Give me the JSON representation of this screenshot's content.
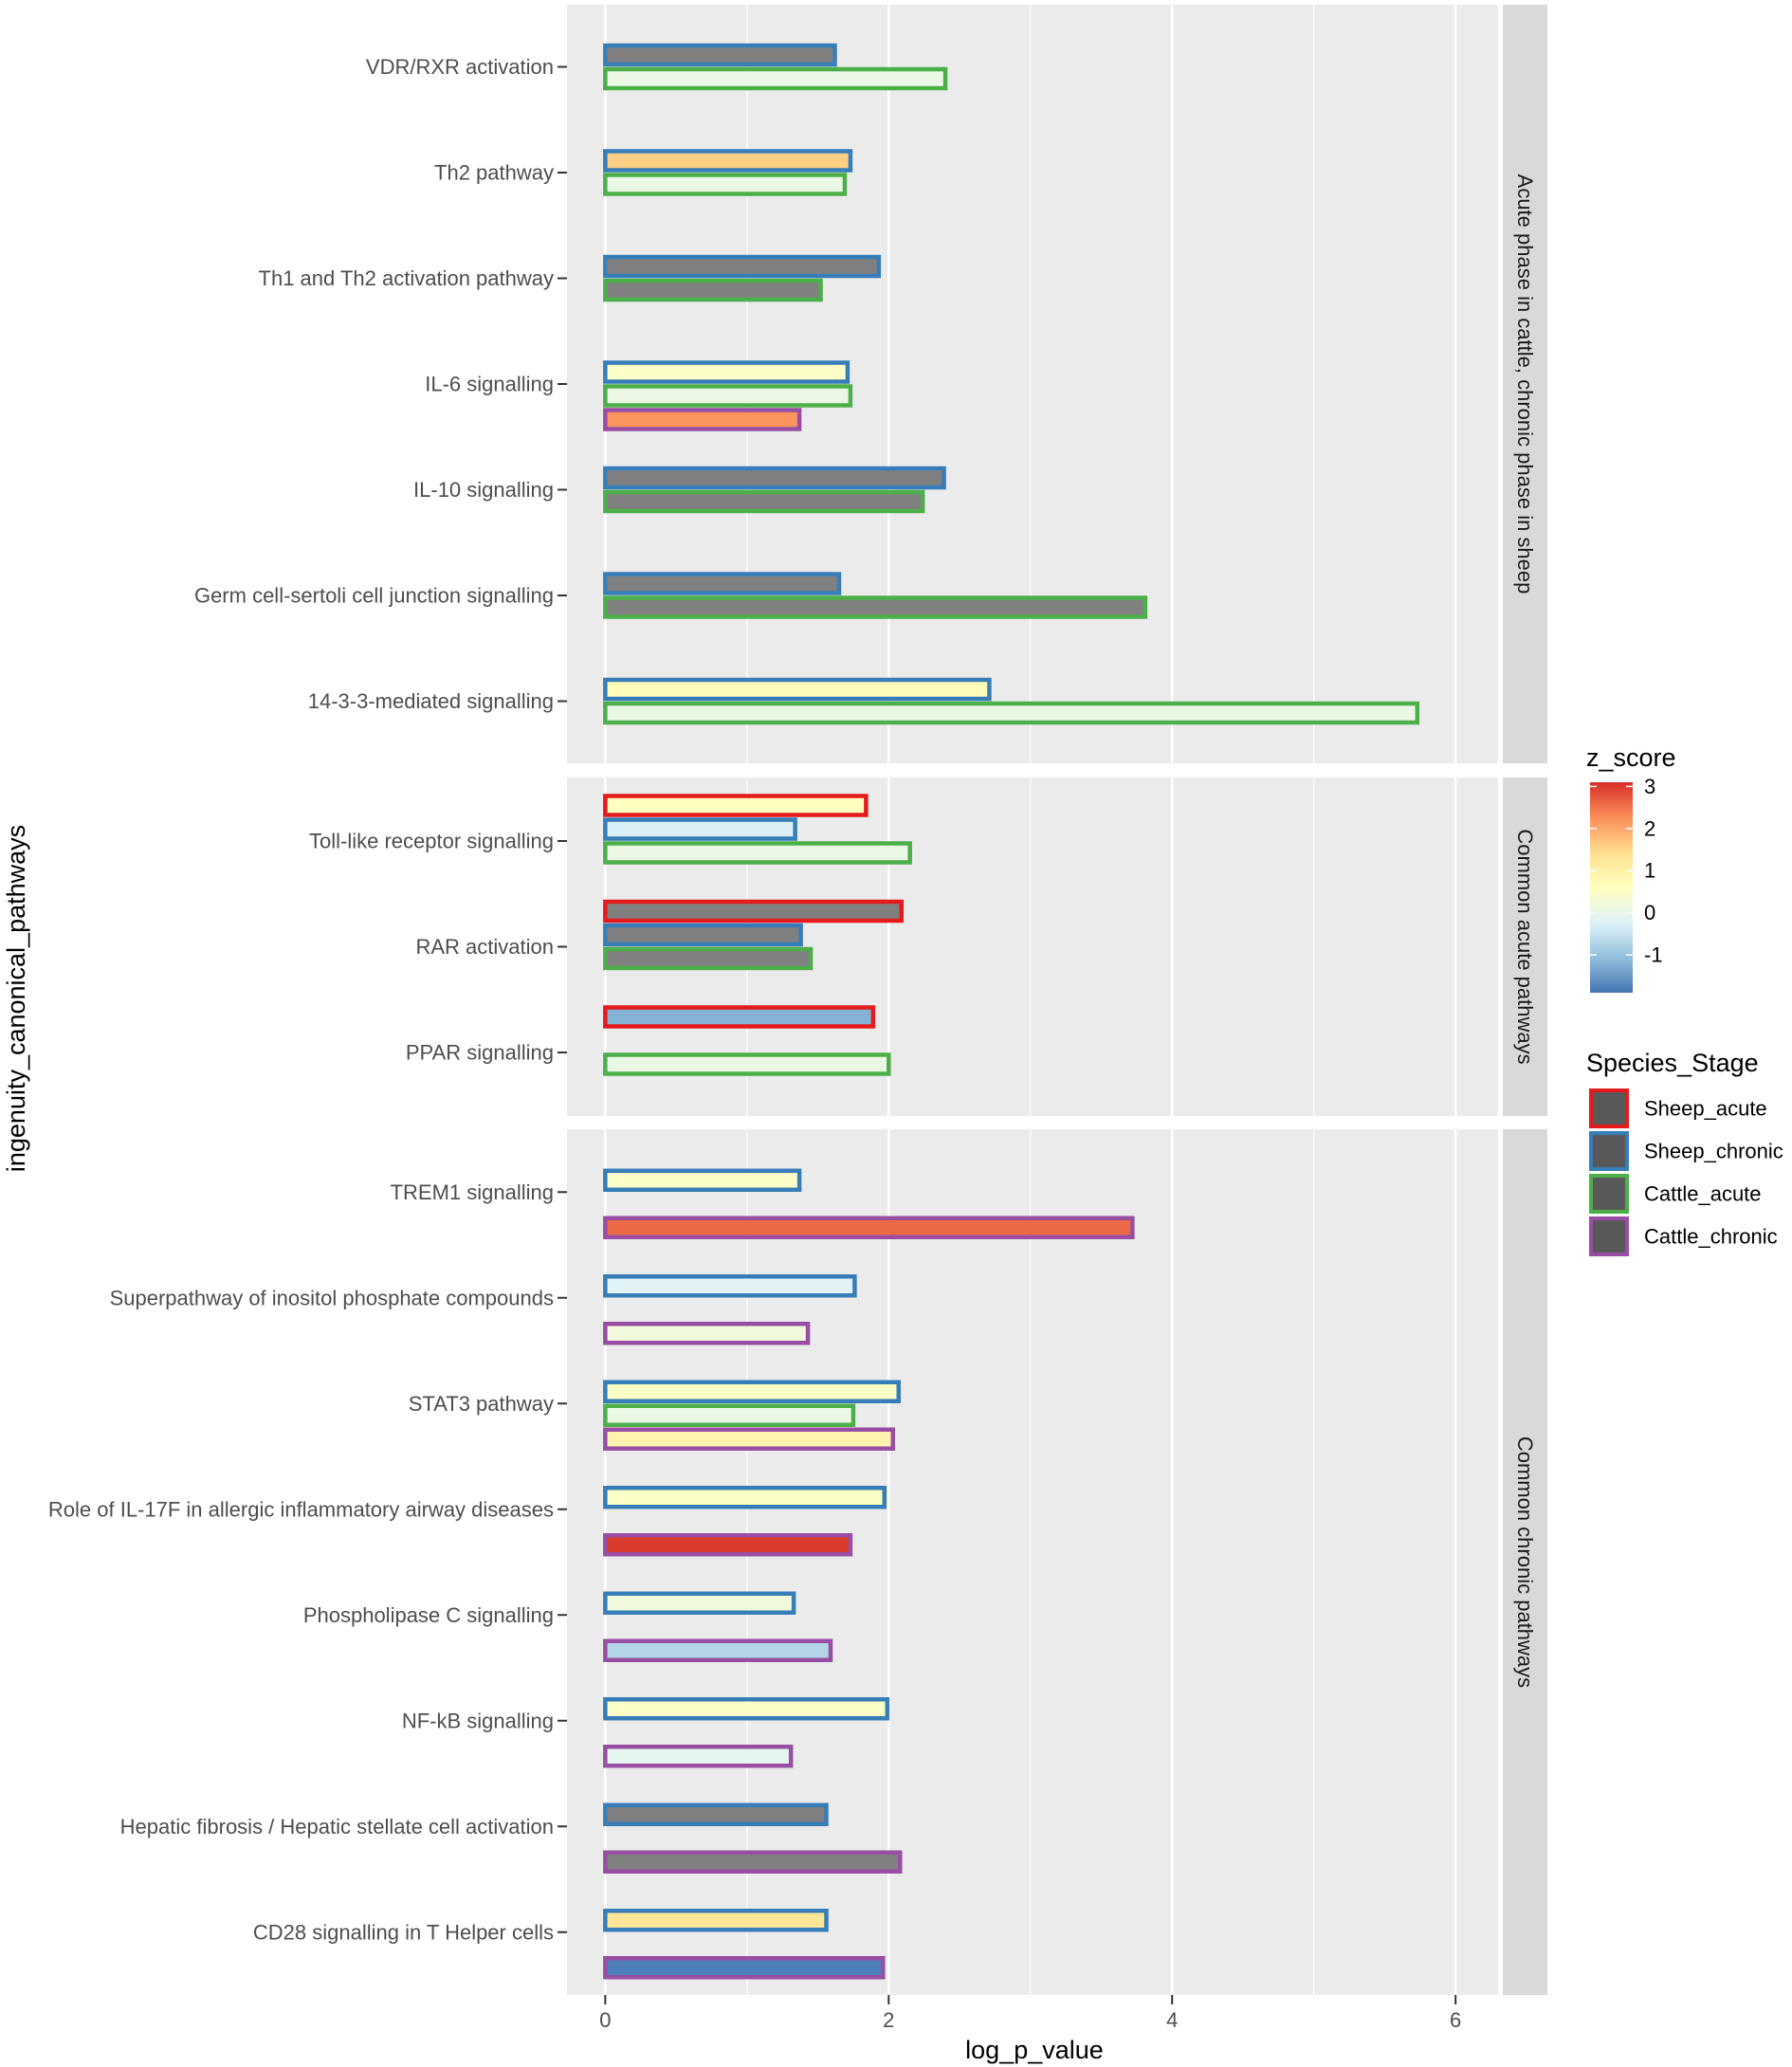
{
  "chart_data": {
    "type": "bar",
    "orientation": "horizontal",
    "xlabel": "log_p_value",
    "ylabel": "ingenuity_canonical_pathways",
    "xlim": [
      -0.27,
      6.3
    ],
    "xticks": [
      0,
      2,
      4,
      6
    ],
    "grid": true,
    "colorbar": {
      "title": "z_score",
      "min": -1.9,
      "max": 3.1,
      "ticks": [
        3,
        2,
        1,
        0,
        -1
      ],
      "palette": [
        "#4575b4",
        "#91bfdb",
        "#e0f3f8",
        "#ffffbf",
        "#fee090",
        "#fc8d59",
        "#d73027"
      ]
    },
    "na_fill": "#808080",
    "legend": {
      "title": "Species_Stage",
      "position": "right",
      "items": [
        {
          "name": "Sheep_acute",
          "color": "#e41a1c"
        },
        {
          "name": "Sheep_chronic",
          "color": "#377eb8"
        },
        {
          "name": "Cattle_acute",
          "color": "#4daf4a"
        },
        {
          "name": "Cattle_chronic",
          "color": "#984ea3"
        }
      ]
    },
    "panels": [
      {
        "label": "Acute phase in cattle, chronic phase in sheep",
        "pathways": [
          {
            "name": "VDR/RXR activation",
            "bars": [
              {
                "stage": "Sheep_chronic",
                "value": 1.62,
                "z": null
              },
              {
                "stage": "Cattle_acute",
                "value": 2.4,
                "z": 0.05
              }
            ]
          },
          {
            "name": "Th2 pathway",
            "bars": [
              {
                "stage": "Sheep_chronic",
                "value": 1.73,
                "z": 1.6
              },
              {
                "stage": "Cattle_acute",
                "value": 1.69,
                "z": 0.05
              }
            ]
          },
          {
            "name": "Th1 and Th2 activation pathway",
            "bars": [
              {
                "stage": "Sheep_chronic",
                "value": 1.93,
                "z": null
              },
              {
                "stage": "Cattle_acute",
                "value": 1.52,
                "z": null
              }
            ]
          },
          {
            "name": "IL-6 signalling",
            "bars": [
              {
                "stage": "Sheep_chronic",
                "value": 1.71,
                "z": 0.5
              },
              {
                "stage": "Cattle_acute",
                "value": 1.73,
                "z": 0.05
              },
              {
                "stage": "Cattle_chronic",
                "value": 1.37,
                "z": 2.2
              }
            ]
          },
          {
            "name": "IL-10 signalling",
            "bars": [
              {
                "stage": "Sheep_chronic",
                "value": 2.39,
                "z": null
              },
              {
                "stage": "Cattle_acute",
                "value": 2.24,
                "z": null
              }
            ]
          },
          {
            "name": "Germ cell-sertoli cell junction signalling",
            "bars": [
              {
                "stage": "Sheep_chronic",
                "value": 1.65,
                "z": null
              },
              {
                "stage": "Cattle_acute",
                "value": 3.81,
                "z": null
              }
            ]
          },
          {
            "name": "14-3-3-mediated signalling",
            "bars": [
              {
                "stage": "Sheep_chronic",
                "value": 2.71,
                "z": 0.7
              },
              {
                "stage": "Cattle_acute",
                "value": 5.73,
                "z": 0.05
              }
            ]
          }
        ]
      },
      {
        "label": "Common acute pathways",
        "pathways": [
          {
            "name": "Toll-like receptor signalling",
            "bars": [
              {
                "stage": "Sheep_acute",
                "value": 1.84,
                "z": 0.6
              },
              {
                "stage": "Sheep_chronic",
                "value": 1.34,
                "z": -0.3
              },
              {
                "stage": "Cattle_acute",
                "value": 2.15,
                "z": 0.05
              }
            ]
          },
          {
            "name": "RAR activation",
            "bars": [
              {
                "stage": "Sheep_acute",
                "value": 2.09,
                "z": null
              },
              {
                "stage": "Sheep_chronic",
                "value": 1.38,
                "z": null
              },
              {
                "stage": "Cattle_acute",
                "value": 1.45,
                "z": null
              }
            ]
          },
          {
            "name": "PPAR signalling",
            "bars": [
              {
                "stage": "Sheep_acute",
                "value": 1.89,
                "z": -1.2
              },
              {
                "stage": "Cattle_acute",
                "value": 2.0,
                "z": 0.05
              }
            ]
          }
        ]
      },
      {
        "label": "Common chronic pathways",
        "pathways": [
          {
            "name": "TREM1 signalling",
            "bars": [
              {
                "stage": "Sheep_chronic",
                "value": 1.37,
                "z": 0.5
              },
              {
                "stage": "Cattle_chronic",
                "value": 3.72,
                "z": 2.6
              }
            ]
          },
          {
            "name": "Superpathway of inositol phosphate compounds",
            "bars": [
              {
                "stage": "Sheep_chronic",
                "value": 1.76,
                "z": -0.2
              },
              {
                "stage": "Cattle_chronic",
                "value": 1.43,
                "z": 0.2
              }
            ]
          },
          {
            "name": "STAT3 pathway",
            "bars": [
              {
                "stage": "Sheep_chronic",
                "value": 2.07,
                "z": 0.5
              },
              {
                "stage": "Cattle_acute",
                "value": 1.75,
                "z": 0.05
              },
              {
                "stage": "Cattle_chronic",
                "value": 2.03,
                "z": 0.9
              }
            ]
          },
          {
            "name": "Role of IL-17F in allergic inflammatory airway diseases",
            "bars": [
              {
                "stage": "Sheep_chronic",
                "value": 1.97,
                "z": 0.5
              },
              {
                "stage": "Cattle_chronic",
                "value": 1.73,
                "z": 3.0
              }
            ]
          },
          {
            "name": "Phospholipase C signalling",
            "bars": [
              {
                "stage": "Sheep_chronic",
                "value": 1.33,
                "z": 0.2
              },
              {
                "stage": "Cattle_chronic",
                "value": 1.59,
                "z": -0.7
              }
            ]
          },
          {
            "name": "NF-kB signalling",
            "bars": [
              {
                "stage": "Sheep_chronic",
                "value": 1.99,
                "z": 0.5
              },
              {
                "stage": "Cattle_chronic",
                "value": 1.31,
                "z": -0.1
              }
            ]
          },
          {
            "name": "Hepatic fibrosis / Hepatic stellate cell activation",
            "bars": [
              {
                "stage": "Sheep_chronic",
                "value": 1.56,
                "z": null
              },
              {
                "stage": "Cattle_chronic",
                "value": 2.08,
                "z": null
              }
            ]
          },
          {
            "name": "CD28 signalling in T Helper cells",
            "bars": [
              {
                "stage": "Sheep_chronic",
                "value": 1.56,
                "z": 1.3
              },
              {
                "stage": "Cattle_chronic",
                "value": 1.96,
                "z": -1.8
              }
            ]
          }
        ]
      }
    ]
  }
}
